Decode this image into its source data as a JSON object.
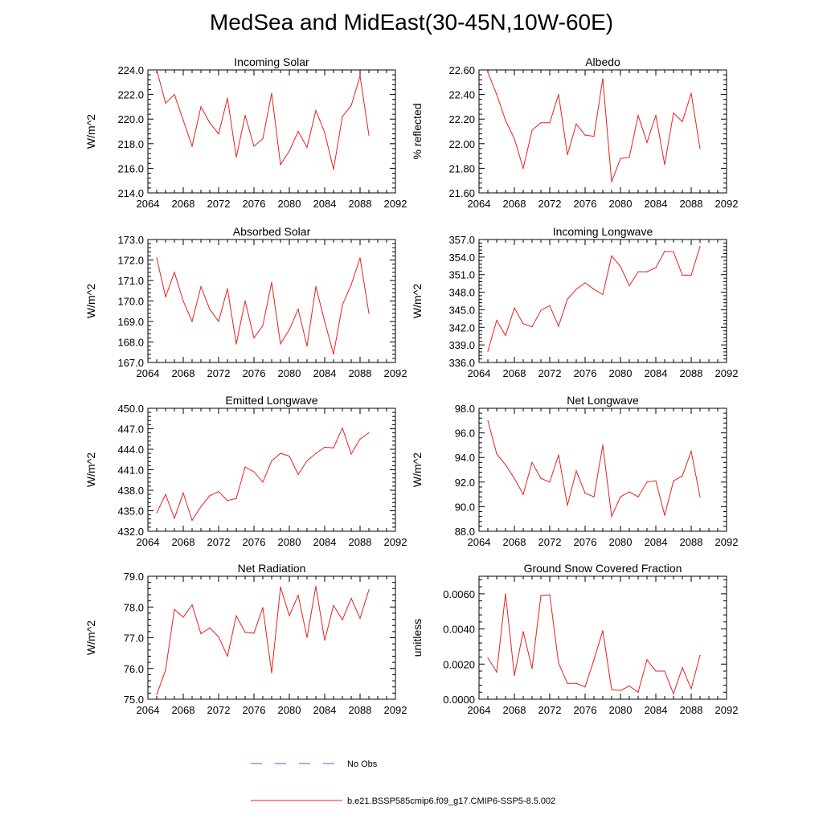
{
  "title": "MedSea and MidEast(30-45N,10W-60E)",
  "legend": {
    "obs_label": "No Obs",
    "obs_color": "#5a5adc",
    "model_label": "b.e21.BSSP585cmip6.f09_g17.CMIP6-SSP5-8.5.002",
    "model_color": "#e8201c"
  },
  "chart_data": [
    {
      "type": "line",
      "title": "Incoming Solar",
      "ylabel": "W/m^2",
      "xlim": [
        2064,
        2092
      ],
      "ylim": [
        214,
        224
      ],
      "xticks": [
        "2064",
        "2068",
        "2072",
        "2076",
        "2080",
        "2084",
        "2088",
        "2092"
      ],
      "yticks": [
        "214.0",
        "216.0",
        "218.0",
        "220.0",
        "222.0",
        "224.0"
      ],
      "x": [
        2065,
        2066,
        2067,
        2068,
        2069,
        2070,
        2071,
        2072,
        2073,
        2074,
        2075,
        2076,
        2077,
        2078,
        2079,
        2080,
        2081,
        2082,
        2083,
        2084,
        2085,
        2086,
        2087,
        2088,
        2089
      ],
      "values": [
        224.0,
        221.3,
        222.0,
        219.9,
        217.8,
        221.0,
        219.7,
        218.8,
        221.7,
        216.9,
        220.3,
        217.8,
        218.4,
        222.1,
        216.3,
        217.4,
        219.0,
        217.7,
        220.7,
        218.9,
        215.9,
        220.2,
        221.1,
        223.5,
        218.7
      ]
    },
    {
      "type": "line",
      "title": "Albedo",
      "ylabel": "% reflected",
      "xlim": [
        2064,
        2092
      ],
      "ylim": [
        21.6,
        22.6
      ],
      "xticks": [
        "2064",
        "2068",
        "2072",
        "2076",
        "2080",
        "2084",
        "2088",
        "2092"
      ],
      "yticks": [
        "21.60",
        "21.80",
        "22.00",
        "22.20",
        "22.40",
        "22.60"
      ],
      "x": [
        2065,
        2066,
        2067,
        2068,
        2069,
        2070,
        2071,
        2072,
        2073,
        2074,
        2075,
        2076,
        2077,
        2078,
        2079,
        2080,
        2081,
        2082,
        2083,
        2084,
        2085,
        2086,
        2087,
        2088,
        2089
      ],
      "values": [
        22.58,
        22.4,
        22.19,
        22.04,
        21.8,
        22.11,
        22.17,
        22.17,
        22.4,
        21.91,
        22.16,
        22.07,
        22.06,
        22.53,
        21.69,
        21.88,
        21.89,
        22.23,
        22.01,
        22.23,
        21.83,
        22.25,
        22.18,
        22.41,
        21.96
      ]
    },
    {
      "type": "line",
      "title": "Absorbed Solar",
      "ylabel": "W/m^2",
      "xlim": [
        2064,
        2092
      ],
      "ylim": [
        167,
        173
      ],
      "xticks": [
        "2064",
        "2068",
        "2072",
        "2076",
        "2080",
        "2084",
        "2088",
        "2092"
      ],
      "yticks": [
        "167.0",
        "168.0",
        "169.0",
        "170.0",
        "171.0",
        "172.0",
        "173.0"
      ],
      "x": [
        2065,
        2066,
        2067,
        2068,
        2069,
        2070,
        2071,
        2072,
        2073,
        2074,
        2075,
        2076,
        2077,
        2078,
        2079,
        2080,
        2081,
        2082,
        2083,
        2084,
        2085,
        2086,
        2087,
        2088,
        2089
      ],
      "values": [
        172.1,
        170.2,
        171.4,
        170.0,
        169.0,
        170.7,
        169.6,
        169.0,
        170.6,
        167.9,
        170.0,
        168.2,
        168.8,
        170.9,
        167.9,
        168.6,
        169.6,
        167.8,
        170.7,
        169.0,
        167.4,
        169.8,
        170.8,
        172.1,
        169.4
      ]
    },
    {
      "type": "line",
      "title": "Incoming Longwave",
      "ylabel": "W/m^2",
      "xlim": [
        2064,
        2092
      ],
      "ylim": [
        336,
        357
      ],
      "xticks": [
        "2064",
        "2068",
        "2072",
        "2076",
        "2080",
        "2084",
        "2088",
        "2092"
      ],
      "yticks": [
        "336.0",
        "339.0",
        "342.0",
        "345.0",
        "348.0",
        "351.0",
        "354.0",
        "357.0"
      ],
      "x": [
        2065,
        2066,
        2067,
        2068,
        2069,
        2070,
        2071,
        2072,
        2073,
        2074,
        2075,
        2076,
        2077,
        2078,
        2079,
        2080,
        2081,
        2082,
        2083,
        2084,
        2085,
        2086,
        2087,
        2088,
        2089
      ],
      "values": [
        337.9,
        343.2,
        340.6,
        345.3,
        342.6,
        342.1,
        344.9,
        345.7,
        342.2,
        346.8,
        348.5,
        349.6,
        348.5,
        347.6,
        354.2,
        352.4,
        349.1,
        351.5,
        351.5,
        352.2,
        355.0,
        354.9,
        350.9,
        350.9,
        355.8
      ]
    },
    {
      "type": "line",
      "title": "Emitted Longwave",
      "ylabel": "W/m^2",
      "xlim": [
        2064,
        2092
      ],
      "ylim": [
        432,
        450
      ],
      "xticks": [
        "2064",
        "2068",
        "2072",
        "2076",
        "2080",
        "2084",
        "2088",
        "2092"
      ],
      "yticks": [
        "432.0",
        "435.0",
        "438.0",
        "441.0",
        "444.0",
        "447.0",
        "450.0"
      ],
      "x": [
        2065,
        2066,
        2067,
        2068,
        2069,
        2070,
        2071,
        2072,
        2073,
        2074,
        2075,
        2076,
        2077,
        2078,
        2079,
        2080,
        2081,
        2082,
        2083,
        2084,
        2085,
        2086,
        2087,
        2088,
        2089
      ],
      "values": [
        434.7,
        437.4,
        433.9,
        437.6,
        433.6,
        435.6,
        437.2,
        437.8,
        436.5,
        436.8,
        441.4,
        440.7,
        439.2,
        442.3,
        443.4,
        443.0,
        440.3,
        442.3,
        443.4,
        444.3,
        444.2,
        447.1,
        443.3,
        445.5,
        446.4
      ]
    },
    {
      "type": "line",
      "title": "Net Longwave",
      "ylabel": "W/m^2",
      "xlim": [
        2064,
        2092
      ],
      "ylim": [
        88,
        98
      ],
      "xticks": [
        "2064",
        "2068",
        "2072",
        "2076",
        "2080",
        "2084",
        "2088",
        "2092"
      ],
      "yticks": [
        "88.0",
        "90.0",
        "92.0",
        "94.0",
        "96.0",
        "98.0"
      ],
      "x": [
        2065,
        2066,
        2067,
        2068,
        2069,
        2070,
        2071,
        2072,
        2073,
        2074,
        2075,
        2076,
        2077,
        2078,
        2079,
        2080,
        2081,
        2082,
        2083,
        2084,
        2085,
        2086,
        2087,
        2088,
        2089
      ],
      "values": [
        97.0,
        94.3,
        93.4,
        92.3,
        91.0,
        93.6,
        92.3,
        92.0,
        94.2,
        90.1,
        92.9,
        91.1,
        90.8,
        95.0,
        89.2,
        90.8,
        91.2,
        90.8,
        92.0,
        92.1,
        89.3,
        92.1,
        92.5,
        94.5,
        90.8
      ]
    },
    {
      "type": "line",
      "title": "Net Radiation",
      "ylabel": "W/m^2",
      "xlim": [
        2064,
        2092
      ],
      "ylim": [
        75,
        79
      ],
      "xticks": [
        "2064",
        "2068",
        "2072",
        "2076",
        "2080",
        "2084",
        "2088",
        "2092"
      ],
      "yticks": [
        "75.0",
        "76.0",
        "77.0",
        "78.0",
        "79.0"
      ],
      "x": [
        2065,
        2066,
        2067,
        2068,
        2069,
        2070,
        2071,
        2072,
        2073,
        2074,
        2075,
        2076,
        2077,
        2078,
        2079,
        2080,
        2081,
        2082,
        2083,
        2084,
        2085,
        2086,
        2087,
        2088,
        2089
      ],
      "values": [
        75.15,
        75.95,
        77.92,
        77.67,
        78.07,
        77.13,
        77.32,
        77.03,
        76.4,
        77.71,
        77.18,
        77.15,
        77.98,
        75.86,
        78.65,
        77.72,
        78.38,
        77.01,
        78.67,
        76.92,
        78.05,
        77.58,
        78.28,
        77.63,
        78.56
      ]
    },
    {
      "type": "line",
      "title": "Ground Snow Covered Fraction",
      "ylabel": "unitless",
      "xlim": [
        2064,
        2092
      ],
      "ylim": [
        0,
        0.007
      ],
      "xticks": [
        "2064",
        "2068",
        "2072",
        "2076",
        "2080",
        "2084",
        "2088",
        "2092"
      ],
      "yticks": [
        "0.0000",
        "0.0020",
        "0.0040",
        "0.0060"
      ],
      "ytick_values": [
        0,
        0.002,
        0.004,
        0.006
      ],
      "x": [
        2065,
        2066,
        2067,
        2068,
        2069,
        2070,
        2071,
        2072,
        2073,
        2074,
        2075,
        2076,
        2077,
        2078,
        2079,
        2080,
        2081,
        2082,
        2083,
        2084,
        2085,
        2086,
        2087,
        2088,
        2089
      ],
      "values": [
        0.00235,
        0.00155,
        0.006,
        0.00135,
        0.00385,
        0.00175,
        0.0059,
        0.00595,
        0.00205,
        0.0009,
        0.0009,
        0.0007,
        0.00225,
        0.0039,
        0.00055,
        0.0005,
        0.00075,
        0.0004,
        0.00225,
        0.0016,
        0.0016,
        0.0003,
        0.0018,
        0.0006,
        0.0025
      ]
    }
  ]
}
